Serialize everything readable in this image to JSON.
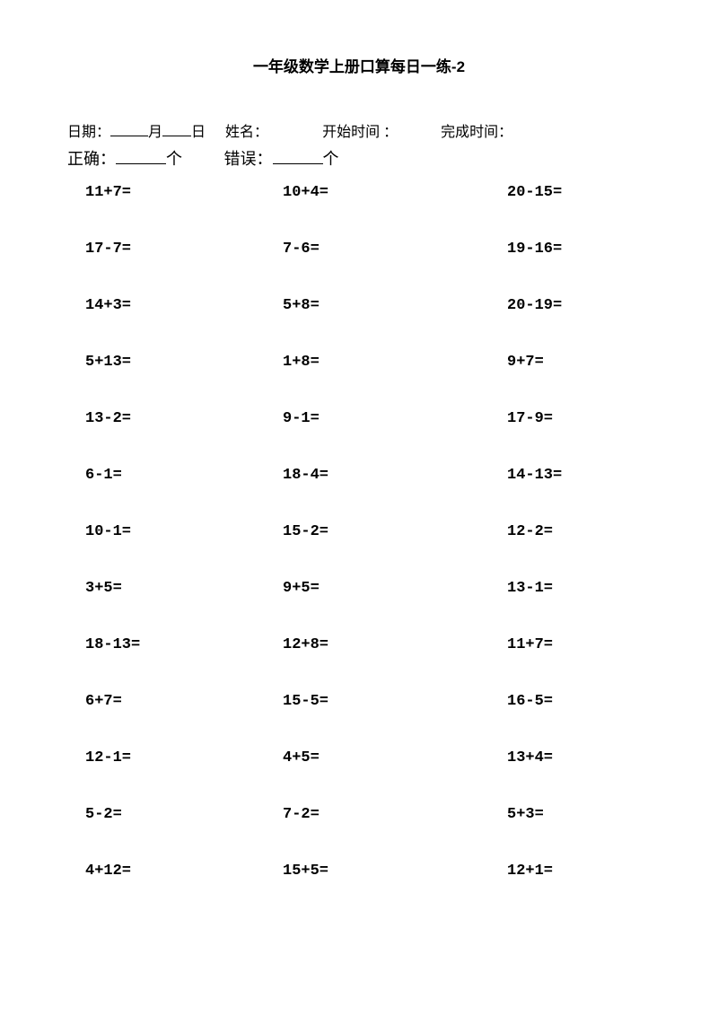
{
  "title": "一年级数学上册口算每日一练-2",
  "header": {
    "date_label": "日期：",
    "month_suffix": "月",
    "day_suffix": "日",
    "name_label": "姓名：",
    "start_label": "开始时间 ：",
    "end_label": "完成时间：",
    "correct_label": "正确：",
    "count_suffix1": "个",
    "wrong_label": "错误：",
    "count_suffix2": "个"
  },
  "problems": [
    {
      "c1": "11+7=",
      "c2": "10+4=",
      "c3": "20-15="
    },
    {
      "c1": "17-7=",
      "c2": "7-6=",
      "c3": "19-16="
    },
    {
      "c1": "14+3=",
      "c2": "5+8=",
      "c3": "20-19="
    },
    {
      "c1": "5+13=",
      "c2": "1+8=",
      "c3": "9+7="
    },
    {
      "c1": "13-2=",
      "c2": "9-1=",
      "c3": "17-9="
    },
    {
      "c1": "6-1=",
      "c2": "18-4=",
      "c3": "14-13="
    },
    {
      "c1": "10-1=",
      "c2": "15-2=",
      "c3": "12-2="
    },
    {
      "c1": "3+5=",
      "c2": "9+5=",
      "c3": "13-1="
    },
    {
      "c1": "18-13=",
      "c2": "12+8=",
      "c3": "11+7="
    },
    {
      "c1": "6+7=",
      "c2": "15-5=",
      "c3": "16-5="
    },
    {
      "c1": "12-1=",
      "c2": "4+5=",
      "c3": "13+4="
    },
    {
      "c1": "5-2=",
      "c2": "7-2=",
      "c3": "5+3="
    },
    {
      "c1": "4+12=",
      "c2": "15+5=",
      "c3": "12+1="
    }
  ],
  "style": {
    "background_color": "#ffffff",
    "text_color": "#000000",
    "title_fontsize": 17,
    "body_fontsize": 16,
    "problem_fontsize": 17,
    "row_spacing": 44
  }
}
